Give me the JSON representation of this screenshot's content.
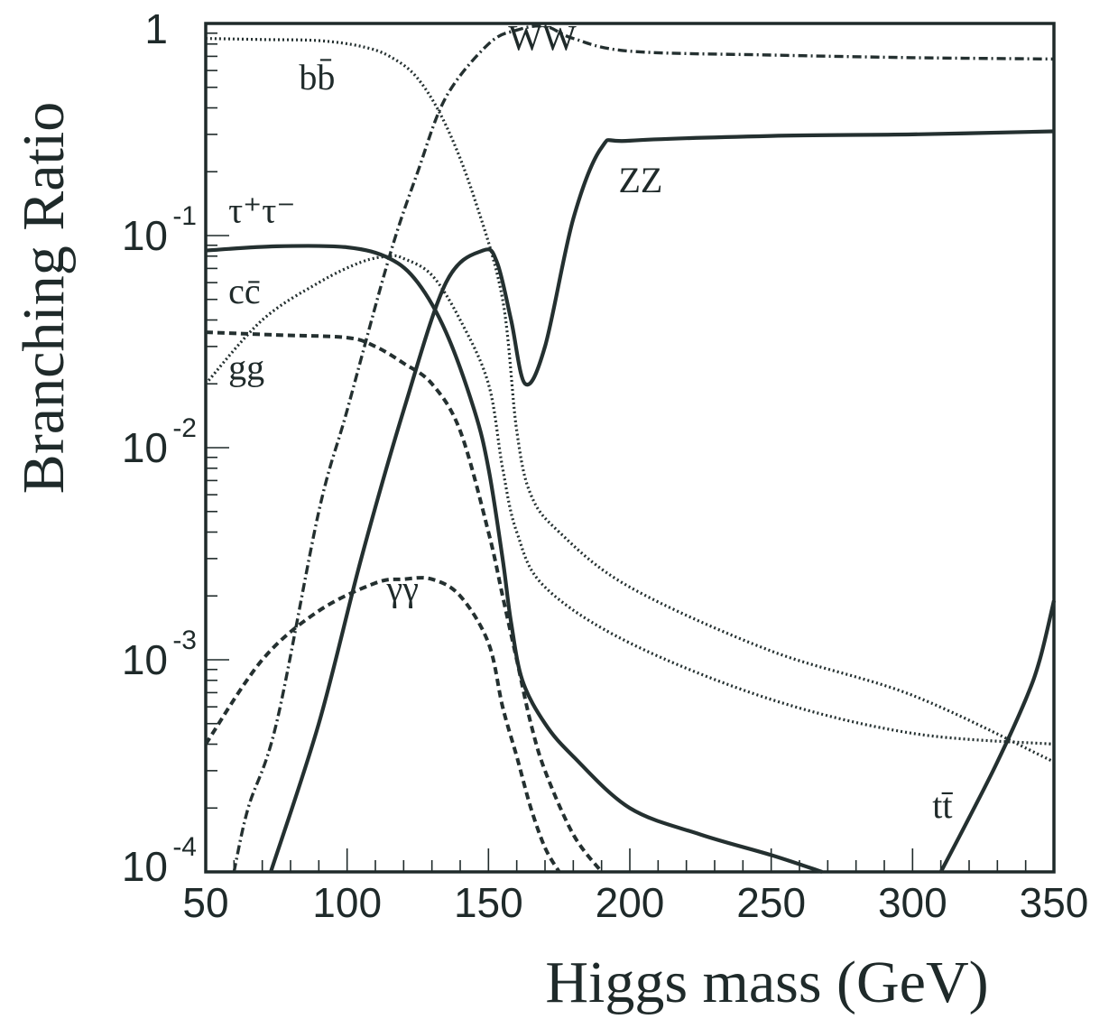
{
  "chart_data": {
    "type": "line",
    "xlabel": "Higgs mass (GeV)",
    "ylabel": "Branching Ratio",
    "xlim": [
      50,
      350
    ],
    "ylim": [
      0.0001,
      1
    ],
    "yscale": "log",
    "grid": false,
    "x_ticks": [
      "50",
      "100",
      "150",
      "200",
      "250",
      "300",
      "350"
    ],
    "y_ticks": [
      {
        "value": 1,
        "base": "1",
        "exp": ""
      },
      {
        "value": 0.1,
        "base": "10",
        "exp": "-1"
      },
      {
        "value": 0.01,
        "base": "10",
        "exp": "-2"
      },
      {
        "value": 0.001,
        "base": "10",
        "exp": "-3"
      },
      {
        "value": 0.0001,
        "base": "10",
        "exp": "-4"
      }
    ],
    "series": [
      {
        "name": "bb̄",
        "style": "dotted",
        "label_pos": [
          83,
          0.49
        ],
        "points": [
          [
            50,
            0.85
          ],
          [
            70,
            0.84
          ],
          [
            90,
            0.83
          ],
          [
            105,
            0.78
          ],
          [
            115,
            0.7
          ],
          [
            125,
            0.55
          ],
          [
            135,
            0.33
          ],
          [
            145,
            0.15
          ],
          [
            155,
            0.05
          ],
          [
            160,
            0.012
          ],
          [
            165,
            0.006
          ],
          [
            175,
            0.004
          ],
          [
            200,
            0.0022
          ],
          [
            250,
            0.0011
          ],
          [
            300,
            0.00068
          ],
          [
            350,
            0.00033
          ]
        ]
      },
      {
        "name": "WW",
        "style": "dashdot",
        "label_pos": [
          157,
          0.75
        ],
        "points": [
          [
            60,
            0.0001
          ],
          [
            65,
            0.0002
          ],
          [
            75,
            0.0005
          ],
          [
            90,
            0.005
          ],
          [
            100,
            0.015
          ],
          [
            115,
            0.08
          ],
          [
            125,
            0.2
          ],
          [
            135,
            0.45
          ],
          [
            150,
            0.8
          ],
          [
            160,
            0.93
          ],
          [
            170,
            0.97
          ],
          [
            180,
            0.85
          ],
          [
            200,
            0.74
          ],
          [
            250,
            0.71
          ],
          [
            300,
            0.69
          ],
          [
            350,
            0.68
          ]
        ]
      },
      {
        "name": "ZZ",
        "style": "solid",
        "label_pos": [
          196,
          0.16
        ],
        "points": [
          [
            73,
            0.0001
          ],
          [
            90,
            0.0005
          ],
          [
            105,
            0.003
          ],
          [
            120,
            0.015
          ],
          [
            135,
            0.06
          ],
          [
            148,
            0.085
          ],
          [
            153,
            0.075
          ],
          [
            158,
            0.04
          ],
          [
            163,
            0.02
          ],
          [
            170,
            0.03
          ],
          [
            180,
            0.12
          ],
          [
            190,
            0.26
          ],
          [
            200,
            0.28
          ],
          [
            250,
            0.295
          ],
          [
            300,
            0.3
          ],
          [
            350,
            0.31
          ]
        ]
      },
      {
        "name": "τ⁺τ⁻",
        "style": "solid",
        "label_pos": [
          58,
          0.115
        ],
        "points": [
          [
            50,
            0.085
          ],
          [
            75,
            0.089
          ],
          [
            100,
            0.088
          ],
          [
            115,
            0.078
          ],
          [
            125,
            0.06
          ],
          [
            135,
            0.035
          ],
          [
            145,
            0.015
          ],
          [
            150,
            0.008
          ],
          [
            155,
            0.003
          ],
          [
            158,
            0.0015
          ],
          [
            162,
            0.0008
          ],
          [
            170,
            0.0005
          ],
          [
            180,
            0.00035
          ],
          [
            200,
            0.0002
          ],
          [
            225,
            0.00015
          ],
          [
            250,
            0.00012
          ],
          [
            268,
            0.0001
          ]
        ]
      },
      {
        "name": "cc̄",
        "style": "dotted",
        "label_pos": [
          58,
          0.048
        ],
        "points": [
          [
            50,
            0.02
          ],
          [
            70,
            0.04
          ],
          [
            90,
            0.06
          ],
          [
            105,
            0.075
          ],
          [
            115,
            0.08
          ],
          [
            120,
            0.078
          ],
          [
            130,
            0.065
          ],
          [
            140,
            0.04
          ],
          [
            150,
            0.02
          ],
          [
            155,
            0.008
          ],
          [
            160,
            0.004
          ],
          [
            170,
            0.0022
          ],
          [
            200,
            0.0012
          ],
          [
            250,
            0.00065
          ],
          [
            300,
            0.00045
          ],
          [
            350,
            0.0004
          ]
        ]
      },
      {
        "name": "gg",
        "style": "dashed",
        "label_pos": [
          58,
          0.021
        ],
        "points": [
          [
            50,
            0.035
          ],
          [
            75,
            0.034
          ],
          [
            100,
            0.033
          ],
          [
            110,
            0.03
          ],
          [
            120,
            0.025
          ],
          [
            130,
            0.02
          ],
          [
            140,
            0.012
          ],
          [
            150,
            0.004
          ],
          [
            155,
            0.002
          ],
          [
            160,
            0.001
          ],
          [
            165,
            0.0005
          ],
          [
            170,
            0.0003
          ],
          [
            180,
            0.00015
          ],
          [
            190,
            0.0001
          ]
        ]
      },
      {
        "name": "γγ",
        "style": "dashed",
        "label_pos": [
          114,
          0.0019
        ],
        "points": [
          [
            50,
            0.0004
          ],
          [
            70,
            0.001
          ],
          [
            90,
            0.0017
          ],
          [
            110,
            0.0023
          ],
          [
            120,
            0.0024
          ],
          [
            130,
            0.0024
          ],
          [
            140,
            0.002
          ],
          [
            150,
            0.0012
          ],
          [
            155,
            0.0006
          ],
          [
            160,
            0.00035
          ],
          [
            165,
            0.0002
          ],
          [
            170,
            0.00013
          ],
          [
            175,
            0.0001
          ]
        ]
      },
      {
        "name": "tt̄",
        "style": "solid",
        "label_pos": [
          307,
          0.00018
        ],
        "points": [
          [
            310,
            0.0001
          ],
          [
            320,
            0.00018
          ],
          [
            330,
            0.00033
          ],
          [
            340,
            0.00065
          ],
          [
            345,
            0.001
          ],
          [
            350,
            0.0019
          ]
        ]
      }
    ]
  }
}
